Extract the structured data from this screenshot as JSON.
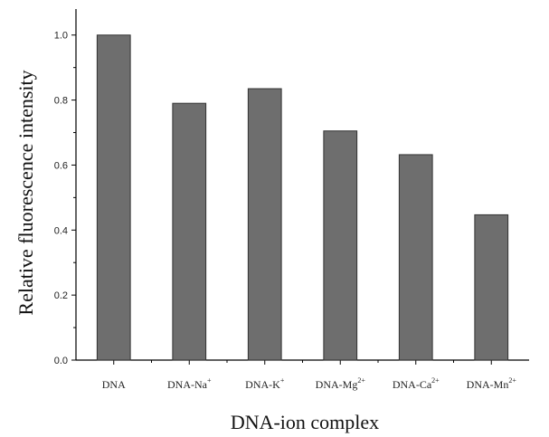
{
  "chart_data": {
    "type": "bar",
    "xlabel": "DNA-ion complex",
    "ylabel": "Relative fluorescence intensity",
    "ylim": [
      0,
      1.08
    ],
    "yticks": [
      "0.0",
      "0.2",
      "0.4",
      "0.6",
      "0.8",
      "1.0"
    ],
    "categories": [
      {
        "base": "DNA",
        "sup": ""
      },
      {
        "base": "DNA-Na",
        "sup": "+"
      },
      {
        "base": "DNA-K",
        "sup": "+"
      },
      {
        "base": "DNA-Mg",
        "sup": "2+"
      },
      {
        "base": "DNA-Ca",
        "sup": "2+"
      },
      {
        "base": "DNA-Mn",
        "sup": "2+"
      }
    ],
    "values": [
      1.0,
      0.79,
      0.835,
      0.705,
      0.632,
      0.447
    ],
    "bar_color": "#6e6e6e",
    "grid": false
  }
}
